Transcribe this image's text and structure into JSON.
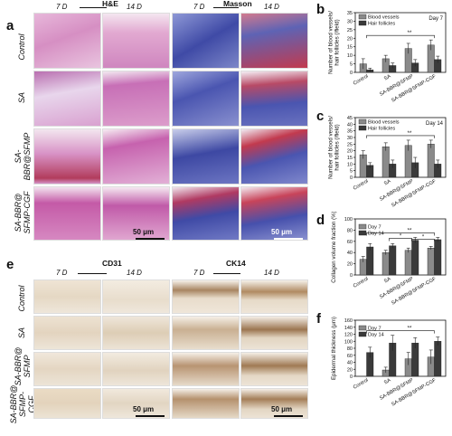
{
  "panels": {
    "a": "a",
    "b": "b",
    "c": "c",
    "d": "d",
    "e": "e",
    "f": "f"
  },
  "panel_a": {
    "stain_left": "H&E",
    "stain_right": "Masson",
    "time_7": "7 D",
    "time_14": "14 D",
    "rows": [
      "Control",
      "SA",
      "SA-\nBBR@SFMP",
      "SA-BBR@\nSFMP-CGF"
    ],
    "scale_label": "50 μm",
    "colors": {
      "he": "#d98fc4",
      "masson": "#4a55b0",
      "masson_red": "#c23a4e"
    }
  },
  "panel_e": {
    "stain_left": "CD31",
    "stain_right": "CK14",
    "time_7": "7 D",
    "time_14": "14 D",
    "rows": [
      "Control",
      "SA",
      "SA-BBR@\nSFMP",
      "SA-BBR@\nSFMP-\nCGF"
    ],
    "scale_label": "50 μm",
    "colors": {
      "ihc": "#e9e0d2",
      "brown": "#b08a62"
    }
  },
  "chart_data": [
    {
      "panel": "b",
      "type": "bar",
      "categories": [
        "Control",
        "SA",
        "SA-BBR@SFMP",
        "SA-BBR@SFMP-CGF"
      ],
      "series": [
        {
          "name": "Blood vessels",
          "values": [
            5,
            8,
            14,
            16
          ],
          "errors": [
            3,
            2,
            3,
            3
          ],
          "color": "#8a8a8a"
        },
        {
          "name": "Hair follicles",
          "values": [
            1.5,
            4,
            5.5,
            7.5
          ],
          "errors": [
            1,
            1.5,
            2,
            2
          ],
          "color": "#3a3a3a"
        }
      ],
      "ylabel": "Number of blood vessels/\nhair follicles (/field)",
      "ylim": [
        0,
        35
      ],
      "yticks": [
        0,
        5,
        10,
        15,
        20,
        25,
        30,
        35
      ],
      "annotation": "Day 7",
      "significance": [
        "**"
      ]
    },
    {
      "panel": "c",
      "type": "bar",
      "categories": [
        "Control",
        "SA",
        "SA-BBR@SFMP",
        "SA-BBR@SFMP-CGF"
      ],
      "series": [
        {
          "name": "Blood vessels",
          "values": [
            17,
            23,
            24,
            25
          ],
          "errors": [
            3,
            3,
            4,
            3
          ],
          "color": "#8a8a8a"
        },
        {
          "name": "Hair follicles",
          "values": [
            9,
            10,
            11,
            10
          ],
          "errors": [
            2,
            3,
            4,
            3
          ],
          "color": "#3a3a3a"
        }
      ],
      "ylabel": "Number of blood vessels/\nhair follicles (/field)",
      "ylim": [
        0,
        45
      ],
      "yticks": [
        0,
        5,
        10,
        15,
        20,
        25,
        30,
        35,
        40,
        45
      ],
      "annotation": "Day 14",
      "significance": [
        "**"
      ]
    },
    {
      "panel": "d",
      "type": "bar",
      "categories": [
        "Control",
        "SA",
        "SA-BBR@SFMP",
        "SA-BBR@SFMP-CGF"
      ],
      "series": [
        {
          "name": "Day 7",
          "values": [
            28,
            40,
            44,
            48
          ],
          "errors": [
            5,
            4,
            4,
            3
          ],
          "color": "#8a8a8a"
        },
        {
          "name": "Day 14",
          "values": [
            50,
            52,
            62,
            63
          ],
          "errors": [
            6,
            4,
            5,
            4
          ],
          "color": "#3a3a3a"
        }
      ],
      "ylabel": "Collagen volume fraction (%)",
      "ylim": [
        0,
        100
      ],
      "yticks": [
        0,
        20,
        40,
        60,
        80,
        100
      ],
      "significance": [
        "**",
        "*",
        "*"
      ]
    },
    {
      "panel": "f",
      "type": "bar",
      "categories": [
        "Control",
        "SA",
        "SA-BBR@SFMP",
        "SA-BBR@SFMP-CGF"
      ],
      "series": [
        {
          "name": "Day 7",
          "values": [
            0,
            18,
            50,
            55
          ],
          "errors": [
            0,
            8,
            18,
            20
          ],
          "color": "#8a8a8a"
        },
        {
          "name": "Day 14",
          "values": [
            68,
            95,
            95,
            100
          ],
          "errors": [
            15,
            22,
            15,
            12
          ],
          "color": "#3a3a3a"
        }
      ],
      "ylabel": "Epidermal thickness (μm)",
      "ylim": [
        0,
        160
      ],
      "yticks": [
        0,
        20,
        40,
        60,
        80,
        100,
        120,
        140,
        160
      ],
      "significance": [
        "**"
      ]
    }
  ]
}
